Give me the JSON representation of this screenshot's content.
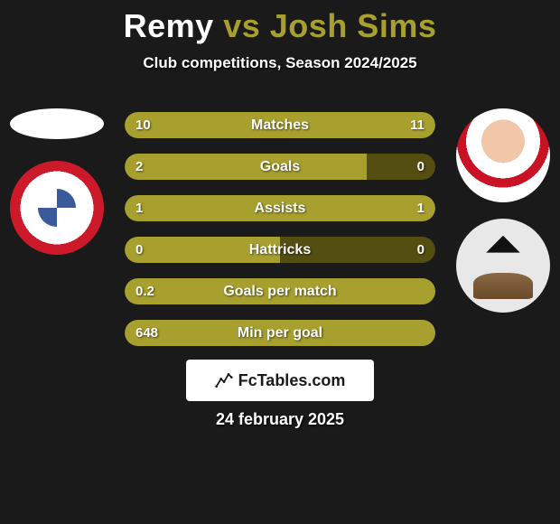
{
  "title": {
    "left": "Remy",
    "vs": "vs",
    "right": "Josh Sims",
    "left_color": "#ffffff",
    "vs_color": "#a8a02e",
    "right_color": "#a8a02e"
  },
  "subtitle": "Club competitions, Season 2024/2025",
  "date": "24 february 2025",
  "brand": "FcTables.com",
  "colors": {
    "left_bar": "#a8a02e",
    "right_bar_filled": "#a8a02e",
    "right_bar_empty": "#544e10",
    "bg": "#1a1a1a"
  },
  "rows": [
    {
      "label": "Matches",
      "left_val": "10",
      "right_val": "11",
      "left_pct": 50,
      "right_pct": 50,
      "right_empty": false
    },
    {
      "label": "Goals",
      "left_val": "2",
      "right_val": "0",
      "left_pct": 78,
      "right_pct": 22,
      "right_empty": true
    },
    {
      "label": "Assists",
      "left_val": "1",
      "right_val": "1",
      "left_pct": 50,
      "right_pct": 50,
      "right_empty": false
    },
    {
      "label": "Hattricks",
      "left_val": "0",
      "right_val": "0",
      "left_pct": 50,
      "right_pct": 50,
      "right_empty": true
    },
    {
      "label": "Goals per match",
      "left_val": "0.2",
      "right_val": "",
      "left_pct": 100,
      "right_pct": 0,
      "right_empty": false
    },
    {
      "label": "Min per goal",
      "left_val": "648",
      "right_val": "",
      "left_pct": 100,
      "right_pct": 0,
      "right_empty": false
    }
  ]
}
